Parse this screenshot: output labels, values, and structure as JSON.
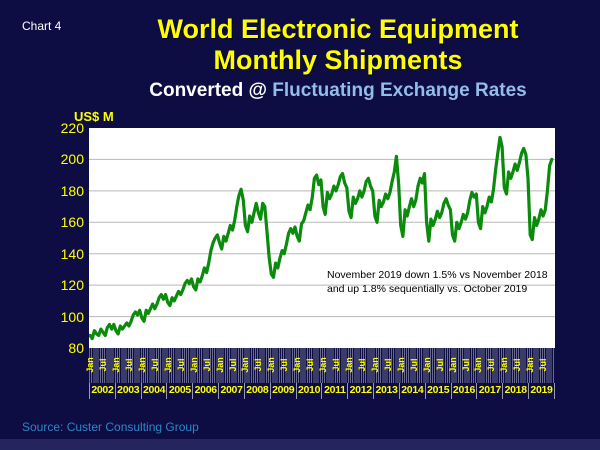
{
  "page": {
    "chart_label": "Chart 4",
    "background_color": "#0D0D44"
  },
  "header": {
    "title_line1": "World Electronic Equipment",
    "title_line2": "Monthly Shipments",
    "subtitle_prefix": "Converted @ ",
    "subtitle_highlight": "Fluctuating Exchange Rates",
    "title_color": "#FFFF00",
    "subtitle_highlight_color": "#93BCE8"
  },
  "annotation": {
    "line1": "November 2019 down 1.5% vs November 2018",
    "line2": "and up 1.8% sequentially vs. October 2019"
  },
  "footer": {
    "source": "Source: Custer Consulting Group",
    "source_color": "#2E86C5"
  },
  "chart_data": {
    "type": "line",
    "title": "World Electronic Equipment Monthly Shipments",
    "subtitle": "Converted @ Fluctuating Exchange Rates",
    "ylabel": "US$ M",
    "ylim": [
      80,
      220
    ],
    "y_ticks": [
      220,
      200,
      180,
      160,
      140,
      120,
      100,
      80
    ],
    "x_years": [
      "2002",
      "2003",
      "2004",
      "2005",
      "2006",
      "2007",
      "2008",
      "2009",
      "2010",
      "2011",
      "2012",
      "2013",
      "2014",
      "2015",
      "2016",
      "2017",
      "2018",
      "2019"
    ],
    "x_month_ticks": [
      "Jan",
      "Jul"
    ],
    "x_month_tick_offsets": [
      0,
      6
    ],
    "months_per_year": 12,
    "grid": "horizontal",
    "plot_bg": "#FFFFFF",
    "line_color": "#0B8B0B",
    "gridline_color": "#B8B8B8",
    "axis_label_color": "#FFFF00",
    "series": [
      {
        "name": "World electronic equipment monthly shipments (US$ M)",
        "start": "Jan 2002",
        "end": "Nov 2019",
        "values": [
          88,
          86,
          91,
          89,
          88,
          92,
          90,
          88,
          93,
          95,
          92,
          95,
          91,
          89,
          94,
          92,
          94,
          96,
          94,
          97,
          101,
          103,
          101,
          104,
          99,
          97,
          104,
          102,
          105,
          108,
          105,
          108,
          112,
          114,
          111,
          114,
          109,
          107,
          112,
          110,
          113,
          116,
          114,
          117,
          121,
          123,
          121,
          124,
          119,
          117,
          124,
          122,
          126,
          131,
          128,
          134,
          142,
          147,
          150,
          152,
          147,
          143,
          151,
          148,
          153,
          158,
          155,
          161,
          170,
          177,
          181,
          174,
          158,
          154,
          164,
          160,
          166,
          172,
          166,
          162,
          172,
          170,
          154,
          138,
          127,
          125,
          134,
          131,
          137,
          142,
          140,
          146,
          153,
          156,
          153,
          157,
          151,
          148,
          159,
          161,
          166,
          171,
          168,
          176,
          188,
          190,
          184,
          187,
          170,
          165,
          179,
          175,
          178,
          183,
          180,
          184,
          189,
          191,
          185,
          182,
          167,
          163,
          176,
          172,
          175,
          180,
          176,
          180,
          186,
          188,
          183,
          180,
          164,
          160,
          174,
          170,
          173,
          178,
          175,
          179,
          186,
          192,
          202,
          185,
          158,
          151,
          168,
          164,
          170,
          175,
          170,
          174,
          183,
          188,
          185,
          191,
          160,
          148,
          162,
          158,
          162,
          167,
          163,
          166,
          172,
          175,
          171,
          168,
          152,
          148,
          160,
          156,
          160,
          165,
          162,
          166,
          174,
          179,
          176,
          178,
          160,
          156,
          170,
          166,
          170,
          176,
          173,
          181,
          194,
          204,
          214,
          208,
          182,
          178,
          192,
          188,
          192,
          197,
          193,
          198,
          204,
          207,
          203,
          188,
          152,
          149,
          163,
          158,
          162,
          168,
          164,
          168,
          180,
          196,
          200
        ]
      }
    ]
  }
}
